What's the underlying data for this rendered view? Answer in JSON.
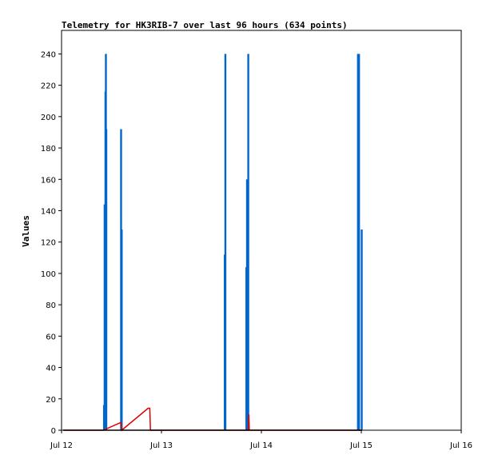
{
  "chart_data": {
    "type": "bar",
    "title": "Telemetry for HK3RIB-7 over last 96 hours (634 points)",
    "xlabel": "",
    "ylabel": "Values",
    "ylim": [
      0,
      255
    ],
    "xlim_hours": [
      0,
      96
    ],
    "x_ticks": [
      {
        "label": "Jul 12",
        "hour": 0
      },
      {
        "label": "Jul 13",
        "hour": 24
      },
      {
        "label": "Jul 14",
        "hour": 48
      },
      {
        "label": "Jul 15",
        "hour": 72
      },
      {
        "label": "Jul 16",
        "hour": 96
      }
    ],
    "y_ticks": [
      0,
      20,
      40,
      60,
      80,
      100,
      120,
      140,
      160,
      180,
      200,
      220,
      240
    ],
    "grid": false,
    "series": [
      {
        "color": "#0066cc",
        "style": "bars",
        "points": [
          {
            "hour": 10.2,
            "value": 16
          },
          {
            "hour": 10.35,
            "value": 144
          },
          {
            "hour": 10.45,
            "value": 128
          },
          {
            "hour": 10.55,
            "value": 216
          },
          {
            "hour": 10.65,
            "value": 240
          },
          {
            "hour": 10.75,
            "value": 192
          },
          {
            "hour": 14.3,
            "value": 192
          },
          {
            "hour": 14.45,
            "value": 128
          },
          {
            "hour": 39.2,
            "value": 112
          },
          {
            "hour": 39.35,
            "value": 240
          },
          {
            "hour": 44.4,
            "value": 104
          },
          {
            "hour": 44.55,
            "value": 160
          },
          {
            "hour": 44.7,
            "value": 144
          },
          {
            "hour": 44.85,
            "value": 240
          },
          {
            "hour": 71.2,
            "value": 240
          },
          {
            "hour": 71.45,
            "value": 240
          },
          {
            "hour": 72.1,
            "value": 128
          }
        ]
      },
      {
        "color": "#dd0000",
        "style": "line",
        "points": [
          {
            "hour": 0.4,
            "value": 0
          },
          {
            "hour": 10.0,
            "value": 0
          },
          {
            "hour": 14.3,
            "value": 5
          },
          {
            "hour": 14.45,
            "value": 0
          },
          {
            "hour": 20.8,
            "value": 14
          },
          {
            "hour": 21.2,
            "value": 14
          },
          {
            "hour": 21.35,
            "value": 0
          },
          {
            "hour": 44.9,
            "value": 0
          },
          {
            "hour": 45.0,
            "value": 10
          },
          {
            "hour": 45.1,
            "value": 0
          },
          {
            "hour": 72.2,
            "value": 0
          }
        ]
      },
      {
        "color": "#000000",
        "style": "line",
        "points": [
          {
            "hour": 0.4,
            "value": 0
          },
          {
            "hour": 72.2,
            "value": 0
          }
        ]
      }
    ]
  }
}
